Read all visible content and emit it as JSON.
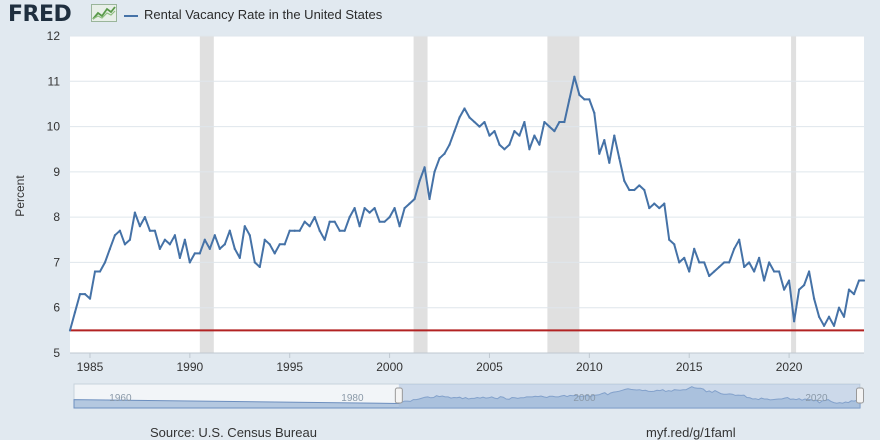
{
  "header": {
    "logo_text": "FRED",
    "legend_label": "Rental Vacancy Rate in the United States"
  },
  "footer": {
    "source": "Source: U.S. Census Bureau",
    "url": "myf.red/g/1faml"
  },
  "colors": {
    "series": "#4572a7",
    "recession": "#e0e0e0",
    "hline": "#b22222",
    "navigator_fill": "#b4c8e0",
    "navigator_selected": "#9db8d9"
  },
  "chart_data": {
    "type": "line",
    "title": "",
    "xlabel": "",
    "ylabel": "Percent",
    "xlim": [
      1984.0,
      2023.75
    ],
    "ylim": [
      5,
      12
    ],
    "yticks": [
      5,
      6,
      7,
      8,
      9,
      10,
      11,
      12
    ],
    "xticks": [
      1985,
      1990,
      1995,
      2000,
      2005,
      2010,
      2015,
      2020
    ],
    "grid": true,
    "legend_position": "top-left",
    "recessions": [
      [
        1990.5,
        1991.2
      ],
      [
        2001.2,
        2001.9
      ],
      [
        2007.9,
        2009.5
      ],
      [
        2020.1,
        2020.35
      ]
    ],
    "hline": {
      "y": 5.5
    },
    "navigator": {
      "tick_labels": [
        "1960",
        "1980",
        "2000",
        "2020"
      ],
      "tick_years": [
        1960,
        1980,
        2000,
        2020
      ],
      "range": [
        1956,
        2023.75
      ],
      "selected": [
        1984.0,
        2023.75
      ]
    },
    "series": [
      {
        "name": "Rental Vacancy Rate in the United States",
        "points": [
          [
            1984.0,
            5.5
          ],
          [
            1984.25,
            5.9
          ],
          [
            1984.5,
            6.3
          ],
          [
            1984.75,
            6.3
          ],
          [
            1985.0,
            6.2
          ],
          [
            1985.25,
            6.8
          ],
          [
            1985.5,
            6.8
          ],
          [
            1985.75,
            7.0
          ],
          [
            1986.0,
            7.3
          ],
          [
            1986.25,
            7.6
          ],
          [
            1986.5,
            7.7
          ],
          [
            1986.75,
            7.4
          ],
          [
            1987.0,
            7.5
          ],
          [
            1987.25,
            8.1
          ],
          [
            1987.5,
            7.8
          ],
          [
            1987.75,
            8.0
          ],
          [
            1988.0,
            7.7
          ],
          [
            1988.25,
            7.7
          ],
          [
            1988.5,
            7.3
          ],
          [
            1988.75,
            7.5
          ],
          [
            1989.0,
            7.4
          ],
          [
            1989.25,
            7.6
          ],
          [
            1989.5,
            7.1
          ],
          [
            1989.75,
            7.5
          ],
          [
            1990.0,
            7.0
          ],
          [
            1990.25,
            7.2
          ],
          [
            1990.5,
            7.2
          ],
          [
            1990.75,
            7.5
          ],
          [
            1991.0,
            7.3
          ],
          [
            1991.25,
            7.6
          ],
          [
            1991.5,
            7.3
          ],
          [
            1991.75,
            7.4
          ],
          [
            1992.0,
            7.7
          ],
          [
            1992.25,
            7.3
          ],
          [
            1992.5,
            7.1
          ],
          [
            1992.75,
            7.8
          ],
          [
            1993.0,
            7.6
          ],
          [
            1993.25,
            7.0
          ],
          [
            1993.5,
            6.9
          ],
          [
            1993.75,
            7.5
          ],
          [
            1994.0,
            7.4
          ],
          [
            1994.25,
            7.2
          ],
          [
            1994.5,
            7.4
          ],
          [
            1994.75,
            7.4
          ],
          [
            1995.0,
            7.7
          ],
          [
            1995.25,
            7.7
          ],
          [
            1995.5,
            7.7
          ],
          [
            1995.75,
            7.9
          ],
          [
            1996.0,
            7.8
          ],
          [
            1996.25,
            8.0
          ],
          [
            1996.5,
            7.7
          ],
          [
            1996.75,
            7.5
          ],
          [
            1997.0,
            7.9
          ],
          [
            1997.25,
            7.9
          ],
          [
            1997.5,
            7.7
          ],
          [
            1997.75,
            7.7
          ],
          [
            1998.0,
            8.0
          ],
          [
            1998.25,
            8.2
          ],
          [
            1998.5,
            7.8
          ],
          [
            1998.75,
            8.2
          ],
          [
            1999.0,
            8.1
          ],
          [
            1999.25,
            8.2
          ],
          [
            1999.5,
            7.9
          ],
          [
            1999.75,
            7.9
          ],
          [
            2000.0,
            8.0
          ],
          [
            2000.25,
            8.2
          ],
          [
            2000.5,
            7.8
          ],
          [
            2000.75,
            8.2
          ],
          [
            2001.0,
            8.3
          ],
          [
            2001.25,
            8.4
          ],
          [
            2001.5,
            8.8
          ],
          [
            2001.75,
            9.1
          ],
          [
            2002.0,
            8.4
          ],
          [
            2002.25,
            9.0
          ],
          [
            2002.5,
            9.3
          ],
          [
            2002.75,
            9.4
          ],
          [
            2003.0,
            9.6
          ],
          [
            2003.25,
            9.9
          ],
          [
            2003.5,
            10.2
          ],
          [
            2003.75,
            10.4
          ],
          [
            2004.0,
            10.2
          ],
          [
            2004.25,
            10.1
          ],
          [
            2004.5,
            10.0
          ],
          [
            2004.75,
            10.1
          ],
          [
            2005.0,
            9.8
          ],
          [
            2005.25,
            9.9
          ],
          [
            2005.5,
            9.6
          ],
          [
            2005.75,
            9.5
          ],
          [
            2006.0,
            9.6
          ],
          [
            2006.25,
            9.9
          ],
          [
            2006.5,
            9.8
          ],
          [
            2006.75,
            10.1
          ],
          [
            2007.0,
            9.5
          ],
          [
            2007.25,
            9.8
          ],
          [
            2007.5,
            9.6
          ],
          [
            2007.75,
            10.1
          ],
          [
            2008.0,
            10.0
          ],
          [
            2008.25,
            9.9
          ],
          [
            2008.5,
            10.1
          ],
          [
            2008.75,
            10.1
          ],
          [
            2009.0,
            10.6
          ],
          [
            2009.25,
            11.1
          ],
          [
            2009.5,
            10.7
          ],
          [
            2009.75,
            10.6
          ],
          [
            2010.0,
            10.6
          ],
          [
            2010.25,
            10.3
          ],
          [
            2010.5,
            9.4
          ],
          [
            2010.75,
            9.7
          ],
          [
            2011.0,
            9.2
          ],
          [
            2011.25,
            9.8
          ],
          [
            2011.5,
            9.3
          ],
          [
            2011.75,
            8.8
          ],
          [
            2012.0,
            8.6
          ],
          [
            2012.25,
            8.6
          ],
          [
            2012.5,
            8.7
          ],
          [
            2012.75,
            8.6
          ],
          [
            2013.0,
            8.2
          ],
          [
            2013.25,
            8.3
          ],
          [
            2013.5,
            8.2
          ],
          [
            2013.75,
            8.3
          ],
          [
            2014.0,
            7.5
          ],
          [
            2014.25,
            7.4
          ],
          [
            2014.5,
            7.0
          ],
          [
            2014.75,
            7.1
          ],
          [
            2015.0,
            6.8
          ],
          [
            2015.25,
            7.3
          ],
          [
            2015.5,
            7.0
          ],
          [
            2015.75,
            7.0
          ],
          [
            2016.0,
            6.7
          ],
          [
            2016.25,
            6.8
          ],
          [
            2016.5,
            6.9
          ],
          [
            2016.75,
            7.0
          ],
          [
            2017.0,
            7.0
          ],
          [
            2017.25,
            7.3
          ],
          [
            2017.5,
            7.5
          ],
          [
            2017.75,
            6.9
          ],
          [
            2018.0,
            7.0
          ],
          [
            2018.25,
            6.8
          ],
          [
            2018.5,
            7.1
          ],
          [
            2018.75,
            6.6
          ],
          [
            2019.0,
            7.0
          ],
          [
            2019.25,
            6.8
          ],
          [
            2019.5,
            6.8
          ],
          [
            2019.75,
            6.4
          ],
          [
            2020.0,
            6.6
          ],
          [
            2020.25,
            5.7
          ],
          [
            2020.5,
            6.4
          ],
          [
            2020.75,
            6.5
          ],
          [
            2021.0,
            6.8
          ],
          [
            2021.25,
            6.2
          ],
          [
            2021.5,
            5.8
          ],
          [
            2021.75,
            5.6
          ],
          [
            2022.0,
            5.8
          ],
          [
            2022.25,
            5.6
          ],
          [
            2022.5,
            6.0
          ],
          [
            2022.75,
            5.8
          ],
          [
            2023.0,
            6.4
          ],
          [
            2023.25,
            6.3
          ],
          [
            2023.5,
            6.6
          ],
          [
            2023.75,
            6.6
          ]
        ]
      }
    ]
  }
}
